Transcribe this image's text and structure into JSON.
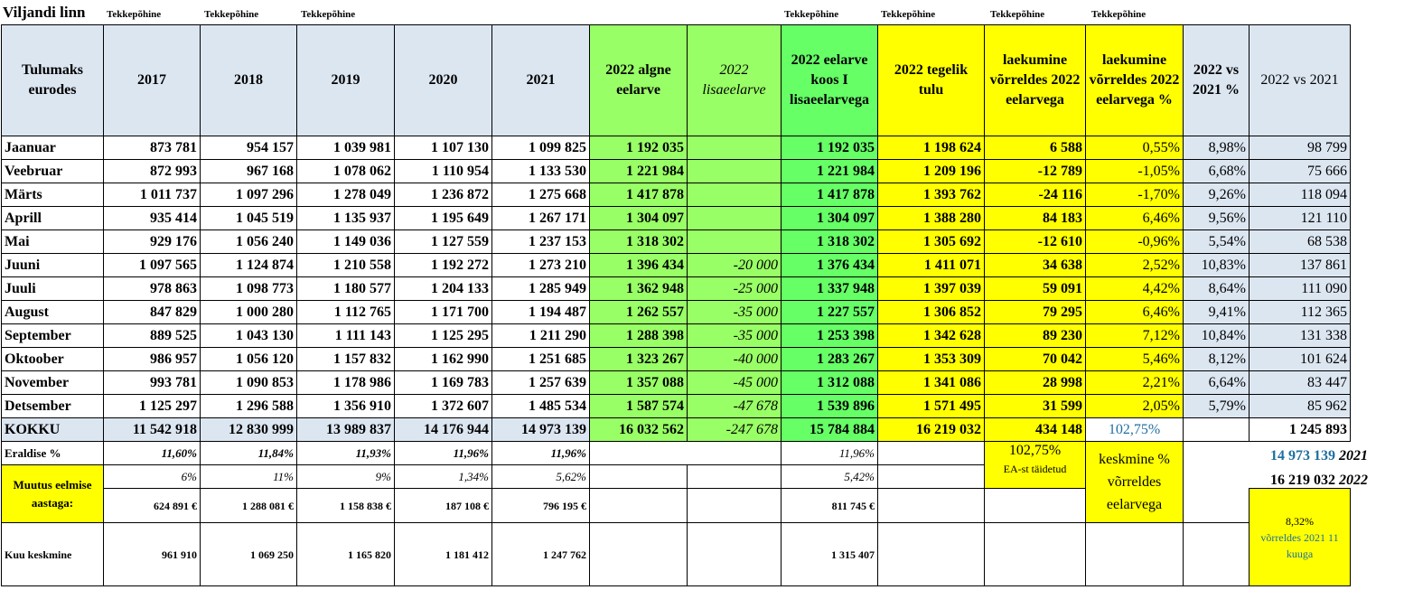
{
  "title": "Viljandi linn",
  "tekkepohine_label": "Tekkepõhine",
  "headers": {
    "first": "Tulumaks eurodes",
    "cols": [
      "2017",
      "2018",
      "2019",
      "2020",
      "2021",
      "2022 algne eelarve",
      "2022 lisaeelarve",
      "2022 eelarve koos I lisaeelarvega",
      "2022 tegelik tulu",
      "laekumine võrreldes 2022 eelarvega",
      "laekumine võrreldes 2022 eelarvega %",
      "2022 vs 2021 %",
      "2022 vs 2021"
    ]
  },
  "months": [
    {
      "name": "Jaanuar",
      "v": [
        "873 781",
        "954 157",
        "1 039 981",
        "1 107 130",
        "1 099 825",
        "1 192 035",
        "",
        "1 192 035",
        "1 198 624",
        "6 588",
        "0,55%",
        "8,98%",
        "98 799"
      ]
    },
    {
      "name": "Veebruar",
      "v": [
        "872 993",
        "967 168",
        "1 078 062",
        "1 110 954",
        "1 133 530",
        "1 221 984",
        "",
        "1 221 984",
        "1 209 196",
        "-12 789",
        "-1,05%",
        "6,68%",
        "75 666"
      ]
    },
    {
      "name": "Märts",
      "v": [
        "1 011 737",
        "1 097 296",
        "1 278 049",
        "1 236 872",
        "1 275 668",
        "1 417 878",
        "",
        "1 417 878",
        "1 393 762",
        "-24 116",
        "-1,70%",
        "9,26%",
        "118 094"
      ]
    },
    {
      "name": "Aprill",
      "v": [
        "935 414",
        "1 045 519",
        "1 135 937",
        "1 195 649",
        "1 267 171",
        "1 304 097",
        "",
        "1 304 097",
        "1 388 280",
        "84 183",
        "6,46%",
        "9,56%",
        "121 110"
      ]
    },
    {
      "name": "Mai",
      "v": [
        "929 176",
        "1 056 240",
        "1 149 036",
        "1 127 559",
        "1 237 153",
        "1 318 302",
        "",
        "1 318 302",
        "1 305 692",
        "-12 610",
        "-0,96%",
        "5,54%",
        "68 538"
      ]
    },
    {
      "name": "Juuni",
      "v": [
        "1 097 565",
        "1 124 874",
        "1 210 558",
        "1 192 272",
        "1 273 210",
        "1 396 434",
        "-20 000",
        "1 376 434",
        "1 411 071",
        "34 638",
        "2,52%",
        "10,83%",
        "137 861"
      ]
    },
    {
      "name": "Juuli",
      "v": [
        "978 863",
        "1 098 773",
        "1 180 577",
        "1 204 133",
        "1 285 949",
        "1 362 948",
        "-25 000",
        "1 337 948",
        "1 397 039",
        "59 091",
        "4,42%",
        "8,64%",
        "111 090"
      ]
    },
    {
      "name": "August",
      "v": [
        "847 829",
        "1 000 280",
        "1 112 765",
        "1 171 700",
        "1 194 487",
        "1 262 557",
        "-35 000",
        "1 227 557",
        "1 306 852",
        "79 295",
        "6,46%",
        "9,41%",
        "112 365"
      ]
    },
    {
      "name": "September",
      "v": [
        "889 525",
        "1 043 130",
        "1 111 143",
        "1 125 295",
        "1 211 290",
        "1 288 398",
        "-35 000",
        "1 253 398",
        "1 342 628",
        "89 230",
        "7,12%",
        "10,84%",
        "131 338"
      ]
    },
    {
      "name": "Oktoober",
      "v": [
        "986 957",
        "1 056 120",
        "1 157 832",
        "1 162 990",
        "1 251 685",
        "1 323 267",
        "-40 000",
        "1 283 267",
        "1 353 309",
        "70 042",
        "5,46%",
        "8,12%",
        "101 624"
      ]
    },
    {
      "name": "November",
      "v": [
        "993 781",
        "1 090 853",
        "1 178 986",
        "1 169 783",
        "1 257 639",
        "1 357 088",
        "-45 000",
        "1 312 088",
        "1 341 086",
        "28 998",
        "2,21%",
        "6,64%",
        "83 447"
      ]
    },
    {
      "name": "Detsember",
      "v": [
        "1 125 297",
        "1 296 588",
        "1 356 910",
        "1 372 607",
        "1 485 534",
        "1 587 574",
        "-47 678",
        "1 539 896",
        "1 571 495",
        "31 599",
        "2,05%",
        "5,79%",
        "85 962"
      ]
    }
  ],
  "total": {
    "name": "KOKKU",
    "v": [
      "11 542 918",
      "12 830 999",
      "13 989 837",
      "14 176 944",
      "14 973 139",
      "16 032 562",
      "-247 678",
      "15 784 884",
      "16 219 032",
      "434 148",
      "102,75%",
      "",
      "1 245 893"
    ]
  },
  "eraldise": {
    "name": "Eraldise %",
    "v": [
      "11,60%",
      "11,84%",
      "11,93%",
      "11,96%",
      "11,96%",
      "11,96%"
    ]
  },
  "muutus": {
    "name": "Muutus eelmise aastaga:",
    "pct": [
      "6%",
      "11%",
      "9%",
      "1,34%",
      "5,62%",
      "5,42%"
    ],
    "eur": [
      "624 891 €",
      "1 288 081 €",
      "1 158 838 €",
      "187 108 €",
      "796 195 €",
      "811 745 €"
    ]
  },
  "kuu": {
    "name": "Kuu keskmine",
    "v": [
      "961 910",
      "1 069 250",
      "1 165 820",
      "1 181 412",
      "1 247 762",
      "1 315 407"
    ]
  },
  "summary": {
    "pct": "102,75%",
    "ea_note": "EA-st täidetud",
    "keskmine": "keskmine % võrreldes eelarvega",
    "val2021": "14 973 139",
    "year2021": "2021",
    "val2022": "16 219 032",
    "year2022": "2022",
    "compare_pct": "8,32%",
    "compare_text": "võrreldes 2021 11 kuuga"
  }
}
